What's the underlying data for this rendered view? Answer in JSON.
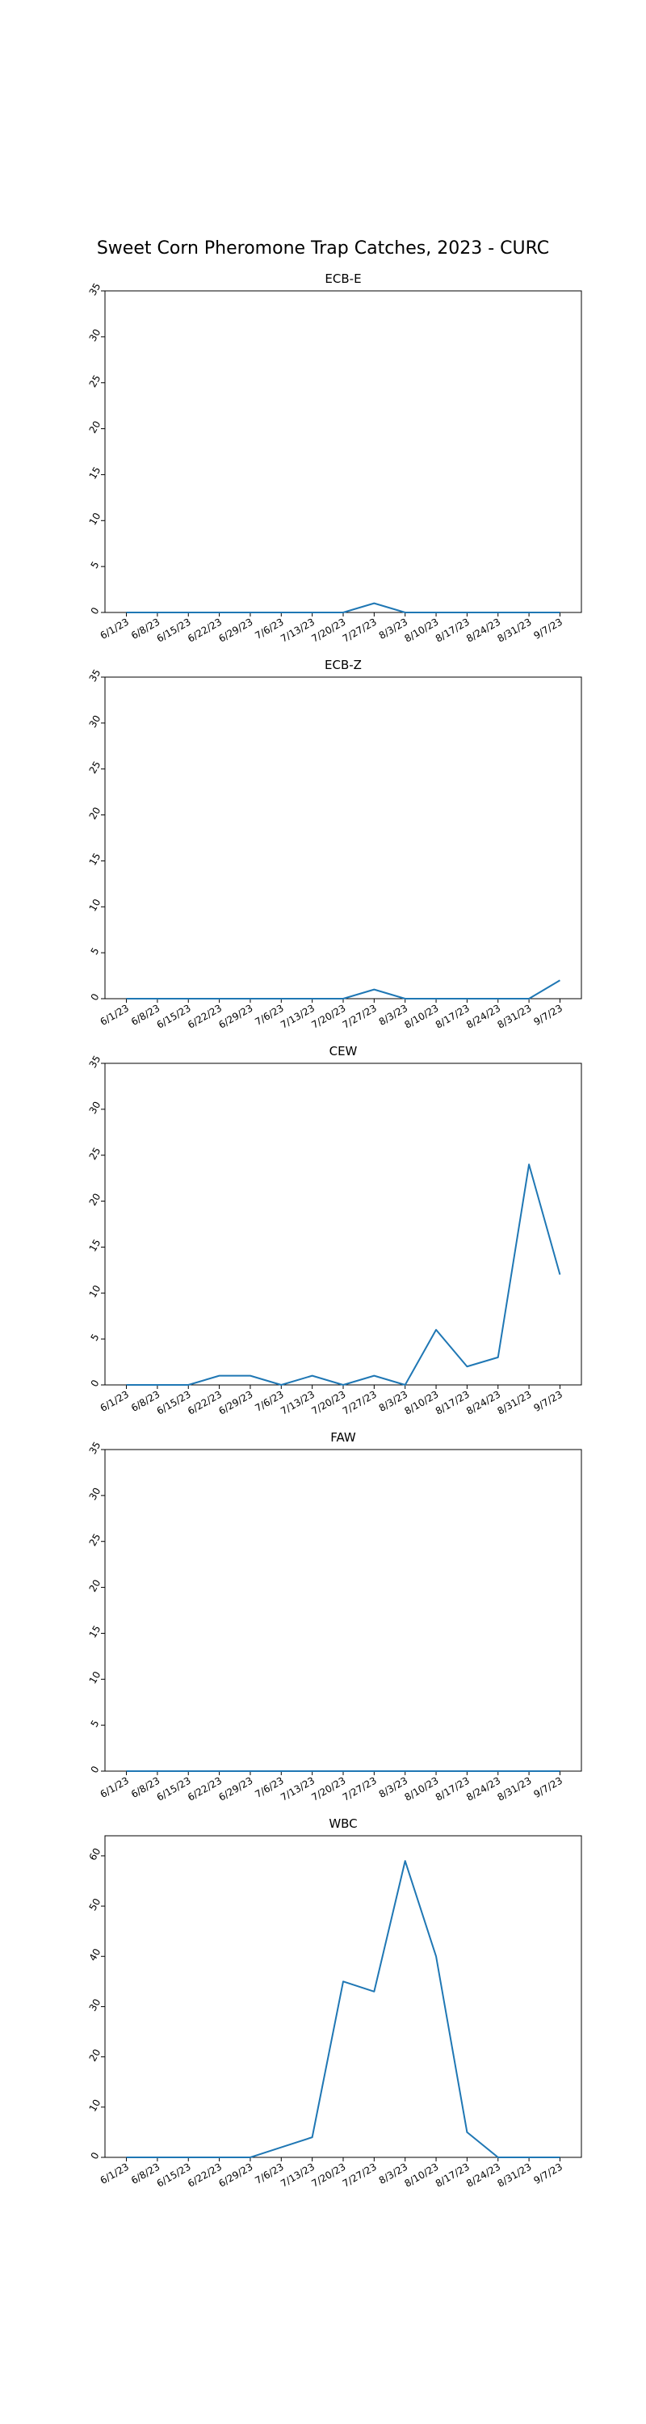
{
  "figure_title": "Sweet Corn Pheromone Trap Catches, 2023 - CURC",
  "colors": {
    "line": "#1f77b4",
    "axes": "#000000",
    "background": "#ffffff"
  },
  "chart_data": [
    {
      "type": "line",
      "title": "ECB-E",
      "categories": [
        "6/1/23",
        "6/8/23",
        "6/15/23",
        "6/22/23",
        "6/29/23",
        "7/6/23",
        "7/13/23",
        "7/20/23",
        "7/27/23",
        "8/3/23",
        "8/10/23",
        "8/17/23",
        "8/24/23",
        "8/31/23",
        "9/7/23"
      ],
      "values": [
        0,
        0,
        0,
        0,
        0,
        0,
        0,
        0,
        1,
        0,
        0,
        0,
        0,
        0,
        0
      ],
      "ylim": [
        0,
        35
      ],
      "yticks": [
        0,
        5,
        10,
        15,
        20,
        25,
        30,
        35
      ],
      "grid": false
    },
    {
      "type": "line",
      "title": "ECB-Z",
      "categories": [
        "6/1/23",
        "6/8/23",
        "6/15/23",
        "6/22/23",
        "6/29/23",
        "7/6/23",
        "7/13/23",
        "7/20/23",
        "7/27/23",
        "8/3/23",
        "8/10/23",
        "8/17/23",
        "8/24/23",
        "8/31/23",
        "9/7/23"
      ],
      "values": [
        0,
        0,
        0,
        0,
        0,
        0,
        0,
        0,
        1,
        0,
        0,
        0,
        0,
        0,
        2
      ],
      "ylim": [
        0,
        35
      ],
      "yticks": [
        0,
        5,
        10,
        15,
        20,
        25,
        30,
        35
      ],
      "grid": false
    },
    {
      "type": "line",
      "title": "CEW",
      "categories": [
        "6/1/23",
        "6/8/23",
        "6/15/23",
        "6/22/23",
        "6/29/23",
        "7/6/23",
        "7/13/23",
        "7/20/23",
        "7/27/23",
        "8/3/23",
        "8/10/23",
        "8/17/23",
        "8/24/23",
        "8/31/23",
        "9/7/23"
      ],
      "values": [
        0,
        0,
        0,
        1,
        1,
        0,
        1,
        0,
        1,
        0,
        6,
        2,
        3,
        24,
        12
      ],
      "ylim": [
        0,
        35
      ],
      "yticks": [
        0,
        5,
        10,
        15,
        20,
        25,
        30,
        35
      ],
      "grid": false
    },
    {
      "type": "line",
      "title": "FAW",
      "categories": [
        "6/1/23",
        "6/8/23",
        "6/15/23",
        "6/22/23",
        "6/29/23",
        "7/6/23",
        "7/13/23",
        "7/20/23",
        "7/27/23",
        "8/3/23",
        "8/10/23",
        "8/17/23",
        "8/24/23",
        "8/31/23",
        "9/7/23"
      ],
      "values": [
        0,
        0,
        0,
        0,
        0,
        0,
        0,
        0,
        0,
        0,
        0,
        0,
        0,
        0,
        0
      ],
      "ylim": [
        0,
        35
      ],
      "yticks": [
        0,
        5,
        10,
        15,
        20,
        25,
        30,
        35
      ],
      "grid": false
    },
    {
      "type": "line",
      "title": "WBC",
      "categories": [
        "6/1/23",
        "6/8/23",
        "6/15/23",
        "6/22/23",
        "6/29/23",
        "7/6/23",
        "7/13/23",
        "7/20/23",
        "7/27/23",
        "8/3/23",
        "8/10/23",
        "8/17/23",
        "8/24/23",
        "8/31/23",
        "9/7/23"
      ],
      "values": [
        0,
        0,
        0,
        0,
        0,
        2,
        4,
        35,
        33,
        59,
        40,
        5,
        0,
        0,
        0
      ],
      "ylim": [
        0,
        64
      ],
      "yticks": [
        0,
        10,
        20,
        30,
        40,
        50,
        60
      ],
      "grid": false
    }
  ]
}
